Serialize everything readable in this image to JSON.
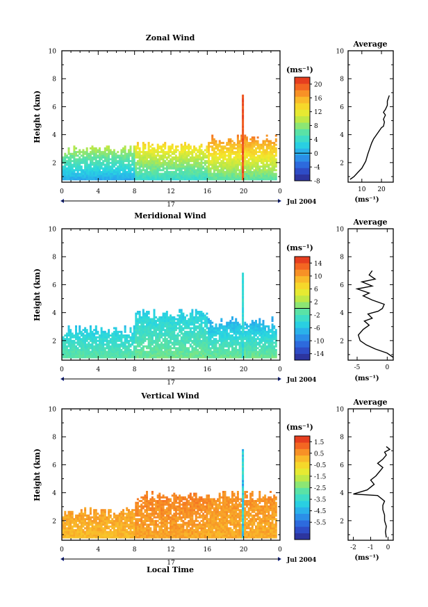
{
  "chart_data": [
    {
      "type": "heatmap",
      "title": "Zonal Wind",
      "xlabel": "",
      "ylabel": "Height (km)",
      "xlim": [
        0,
        24
      ],
      "ylim": [
        0.6,
        10
      ],
      "x_ticks": [
        "0",
        "4",
        "8",
        "12",
        "16",
        "20",
        "0"
      ],
      "y_ticks": [
        "2",
        "4",
        "6",
        "8",
        "10"
      ],
      "date_axis": {
        "day": "17",
        "label": "Jul 2004"
      },
      "colorbar": {
        "unit": "(ms⁻¹)",
        "min": -8,
        "max": 22,
        "zero": 0,
        "ticks": [
          "20",
          "16",
          "12",
          "8",
          "4",
          "0",
          "-4",
          "-8"
        ]
      },
      "field_summary": {
        "ranges": [
          {
            "from_hour": 0,
            "to_hour": 8,
            "top_km": 2.9,
            "base_value": 0,
            "top_value": 9
          },
          {
            "from_hour": 8,
            "to_hour": 16,
            "top_km": 3.1,
            "base_value": 4,
            "top_value": 13
          },
          {
            "from_hour": 16,
            "to_hour": 23.5,
            "top_km": 3.6,
            "base_value": 6,
            "top_value": 17
          }
        ],
        "plume": {
          "hour": 19.8,
          "top_km": 6.8,
          "value": 20
        }
      },
      "average_profile": {
        "title": "Average",
        "xlabel": "(ms⁻¹)",
        "x_ticks": [
          "10",
          "20"
        ],
        "y_ticks": [
          "2",
          "4",
          "6",
          "8",
          "10"
        ],
        "xlim": [
          3,
          26
        ],
        "x": [
          4,
          6,
          8,
          10,
          12,
          13,
          14,
          15,
          16,
          17,
          18,
          19,
          20,
          21,
          21.5,
          21,
          22,
          21,
          22,
          23,
          23,
          24
        ],
        "y": [
          0.8,
          1.0,
          1.3,
          1.6,
          2.1,
          2.6,
          3.0,
          3.4,
          3.7,
          3.9,
          4.1,
          4.3,
          4.5,
          4.6,
          4.9,
          5.1,
          5.4,
          5.6,
          5.8,
          6.1,
          6.4,
          6.8
        ]
      }
    },
    {
      "type": "heatmap",
      "title": "Meridional Wind",
      "xlabel": "",
      "ylabel": "Height (km)",
      "xlim": [
        0,
        24
      ],
      "ylim": [
        0.6,
        10
      ],
      "x_ticks": [
        "0",
        "4",
        "8",
        "12",
        "16",
        "20",
        "0"
      ],
      "y_ticks": [
        "2",
        "4",
        "6",
        "8",
        "10"
      ],
      "date_axis": {
        "day": "17",
        "label": "Jul 2004"
      },
      "colorbar": {
        "unit": "(ms⁻¹)",
        "min": -16,
        "max": 16,
        "zero": 0,
        "ticks": [
          "14",
          "10",
          "6",
          "2",
          "-2",
          "-6",
          "-10",
          "-14"
        ]
      },
      "field_summary": {
        "ranges": [
          {
            "from_hour": 0,
            "to_hour": 8,
            "top_km": 2.7,
            "base_value": -1,
            "top_value": -5
          },
          {
            "from_hour": 8,
            "to_hour": 16,
            "top_km": 3.9,
            "base_value": 0,
            "top_value": -5
          },
          {
            "from_hour": 16,
            "to_hour": 23.5,
            "top_km": 3.3,
            "base_value": 0,
            "top_value": -7
          }
        ],
        "plume": {
          "hour": 19.8,
          "top_km": 6.8,
          "value": -4
        }
      },
      "average_profile": {
        "title": "Average",
        "xlabel": "(ms⁻¹)",
        "x_ticks": [
          "-5",
          "0"
        ],
        "y_ticks": [
          "2",
          "4",
          "6",
          "8",
          "10"
        ],
        "xlim": [
          -6.5,
          1
        ],
        "x": [
          1,
          0,
          -2,
          -3.5,
          -4.5,
          -4.8,
          -4,
          -3,
          -3.8,
          -2.5,
          -3.2,
          -1.5,
          -0.8,
          -0.5,
          -2.5,
          -4,
          -3,
          -5,
          -2.5,
          -4.2,
          -2,
          -3,
          -2.5
        ],
        "y": [
          0.8,
          1.1,
          1.4,
          1.7,
          2.0,
          2.4,
          2.8,
          3.1,
          3.4,
          3.6,
          3.9,
          4.1,
          4.3,
          4.6,
          4.9,
          5.2,
          5.4,
          5.7,
          5.9,
          6.2,
          6.4,
          6.7,
          7.0
        ]
      }
    },
    {
      "type": "heatmap",
      "title": "Vertical Wind",
      "xlabel": "Local Time",
      "ylabel": "Height (km)",
      "xlim": [
        0,
        24
      ],
      "ylim": [
        0.6,
        10
      ],
      "x_ticks": [
        "0",
        "4",
        "8",
        "12",
        "16",
        "20",
        "0"
      ],
      "y_ticks": [
        "2",
        "4",
        "6",
        "8",
        "10"
      ],
      "date_axis": {
        "day": "17",
        "label": "Jul 2004"
      },
      "colorbar": {
        "unit": "(ms⁻¹)",
        "min": -7,
        "max": 2,
        "zero": null,
        "ticks": [
          "1.5",
          "0.5",
          "-0.5",
          "-1.5",
          "-2.5",
          "-3.5",
          "-4.5",
          "-5.5"
        ]
      },
      "field_summary": {
        "ranges": [
          {
            "from_hour": 0,
            "to_hour": 8,
            "top_km": 2.6,
            "base_value": 0.0,
            "top_value": 0.4
          },
          {
            "from_hour": 8,
            "to_hour": 16,
            "top_km": 3.7,
            "base_value": 0.3,
            "top_value": 0.8
          },
          {
            "from_hour": 16,
            "to_hour": 23.5,
            "top_km": 3.8,
            "base_value": 0.2,
            "top_value": 0.6
          }
        ],
        "plume": {
          "hour": 19.8,
          "top_km": 7.0,
          "value": -4
        }
      },
      "average_profile": {
        "title": "Average",
        "xlabel": "(ms⁻¹)",
        "x_ticks": [
          "-2",
          "-1",
          "0"
        ],
        "y_ticks": [
          "2",
          "4",
          "6",
          "8",
          "10"
        ],
        "xlim": [
          -2.3,
          0.3
        ],
        "x": [
          -0.1,
          -0.15,
          -0.1,
          -0.2,
          -0.2,
          -0.3,
          -0.3,
          -0.2,
          -0.4,
          -0.6,
          -2.0,
          -1.2,
          -0.8,
          -1.0,
          -0.7,
          -0.5,
          -0.3,
          -0.6,
          -0.3,
          -0.1,
          -0.2,
          0.1,
          -0.1
        ],
        "y": [
          0.8,
          1.2,
          1.6,
          2.0,
          2.4,
          2.8,
          3.1,
          3.4,
          3.6,
          3.8,
          3.9,
          4.2,
          4.6,
          4.9,
          5.2,
          5.5,
          5.8,
          6.1,
          6.4,
          6.7,
          6.9,
          7.1,
          7.3
        ]
      }
    }
  ]
}
